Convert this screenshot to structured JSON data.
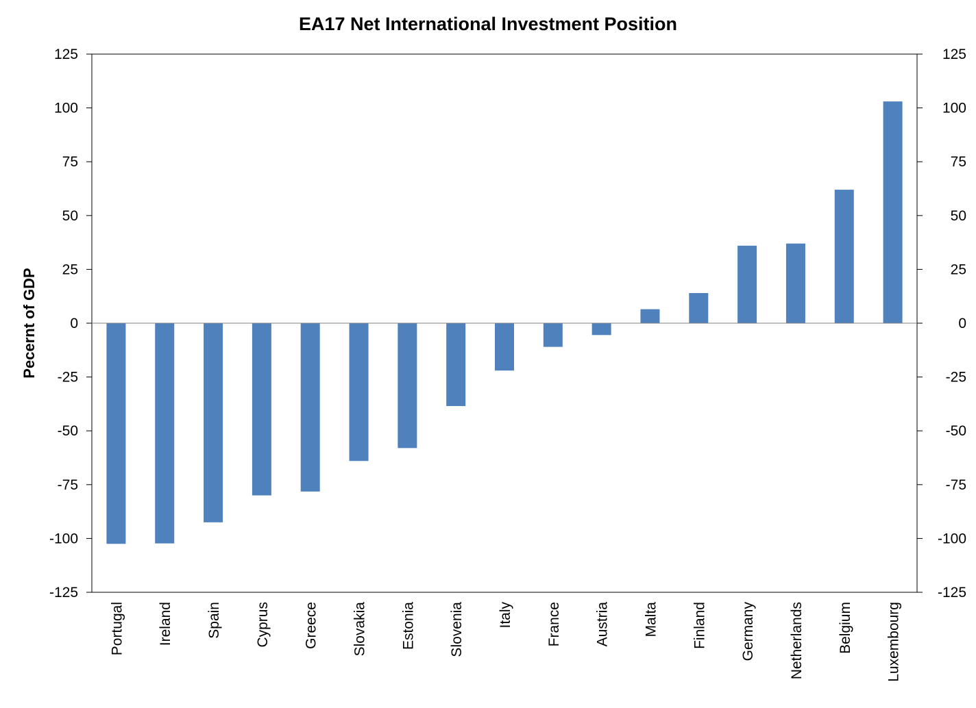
{
  "chart_data": {
    "type": "bar",
    "title": "EA17 Net International Investment Position",
    "ylabel": "Pecernt of GDP",
    "xlabel": "",
    "ylim": [
      -125,
      125
    ],
    "yticks": [
      125,
      100,
      75,
      50,
      25,
      0,
      -25,
      -50,
      -75,
      -100,
      -125
    ],
    "secondary_y_axis": true,
    "grid": false,
    "legend": "none",
    "bar_color": "#4F81BD",
    "categories": [
      "Portugal",
      "Ireland",
      "Spain",
      "Cyprus",
      "Greece",
      "Slovakia",
      "Estonia",
      "Slovenia",
      "Italy",
      "France",
      "Austria",
      "Malta",
      "Finland",
      "Germany",
      "Netherlands",
      "Belgium",
      "Luxembourg"
    ],
    "values": [
      -102.5,
      -102.3,
      -92.5,
      -80,
      -78.2,
      -64,
      -58,
      -38.5,
      -22,
      -11,
      -5.5,
      6.5,
      14,
      36,
      37,
      62,
      103
    ]
  }
}
